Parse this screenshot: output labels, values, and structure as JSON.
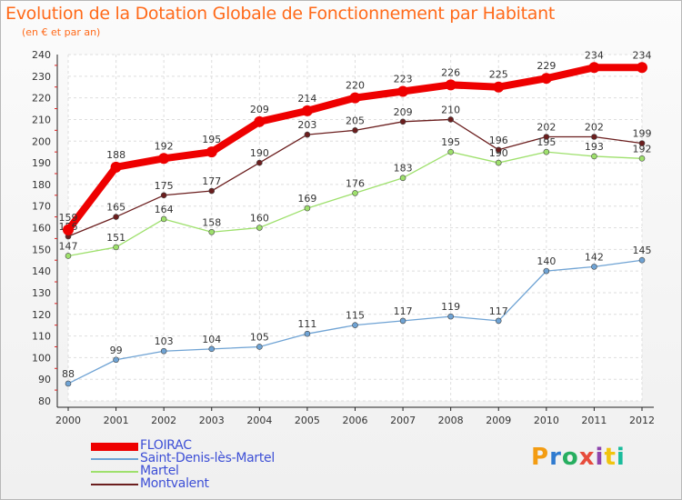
{
  "title": "Evolution de la Dotation Globale de Fonctionnement par Habitant",
  "subtitle": "(en € et par an)",
  "logo": {
    "text": "Proxiti",
    "colors": [
      "#f39c12",
      "#2f7bd0",
      "#27ae60",
      "#e74c3c",
      "#8e44ad",
      "#f1c40f",
      "#1abc9c"
    ]
  },
  "chart_data": {
    "type": "line",
    "title": "Evolution de la Dotation Globale de Fonctionnement par Habitant",
    "subtitle": "(en € et par an)",
    "xlabel": "",
    "ylabel": "",
    "x": [
      "2000",
      "2001",
      "2002",
      "2003",
      "2004",
      "2005",
      "2006",
      "2007",
      "2008",
      "2009",
      "2010",
      "2011",
      "2012"
    ],
    "ylim": [
      80,
      240
    ],
    "yticks": [
      80,
      90,
      100,
      110,
      120,
      130,
      140,
      150,
      160,
      170,
      180,
      190,
      200,
      210,
      220,
      230,
      240
    ],
    "grid": true,
    "legend_position": "bottom-left",
    "series": [
      {
        "name": "FLOIRAC",
        "color": "#ee0000",
        "style": "thick",
        "values": [
          159,
          188,
          192,
          195,
          209,
          214,
          220,
          223,
          226,
          225,
          229,
          234,
          234
        ]
      },
      {
        "name": "Saint-Denis-lès-Martel",
        "color": "#6fa3d4",
        "style": "normal",
        "values": [
          88,
          99,
          103,
          104,
          105,
          111,
          115,
          117,
          119,
          117,
          140,
          142,
          145
        ]
      },
      {
        "name": "Martel",
        "color": "#9ee06c",
        "style": "normal",
        "values": [
          147,
          151,
          164,
          158,
          160,
          169,
          176,
          183,
          195,
          190,
          195,
          193,
          192
        ]
      },
      {
        "name": "Montvalent",
        "color": "#6b1e1e",
        "style": "normal",
        "values": [
          156,
          165,
          175,
          177,
          190,
          203,
          205,
          209,
          210,
          196,
          202,
          202,
          199
        ]
      }
    ]
  }
}
